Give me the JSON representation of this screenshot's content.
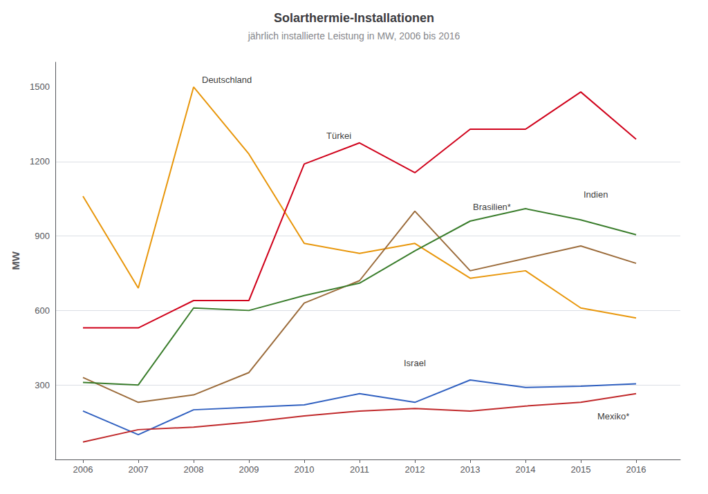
{
  "chart_data": {
    "type": "line",
    "title": "Solarthermie-Installationen",
    "subtitle": "jährlich installierte Leistung in MW, 2006 bis 2016",
    "y_label": "MW",
    "x": [
      2006,
      2007,
      2008,
      2009,
      2010,
      2011,
      2012,
      2013,
      2014,
      2015,
      2016
    ],
    "series": [
      {
        "name": "Deutschland",
        "color": "#E8960A",
        "values": [
          1060,
          690,
          1500,
          1230,
          870,
          830,
          870,
          730,
          760,
          610,
          570
        ]
      },
      {
        "name": "Türkei",
        "color": "#D0021B",
        "values": [
          530,
          530,
          640,
          640,
          1190,
          1275,
          1155,
          1330,
          1330,
          1480,
          1290
        ]
      },
      {
        "name": "Brasilien*",
        "color": "#9B6B3A",
        "values": [
          330,
          230,
          260,
          350,
          630,
          720,
          1000,
          760,
          810,
          860,
          790
        ]
      },
      {
        "name": "Indien",
        "color": "#3A7D2C",
        "values": [
          310,
          300,
          610,
          600,
          660,
          710,
          840,
          960,
          1010,
          965,
          905
        ]
      },
      {
        "name": "Israel",
        "color": "#3060C0",
        "values": [
          195,
          100,
          200,
          210,
          220,
          265,
          230,
          320,
          290,
          295,
          305
        ]
      },
      {
        "name": "Mexiko*",
        "color": "#C0282A",
        "values": [
          70,
          120,
          130,
          150,
          175,
          195,
          205,
          195,
          215,
          230,
          265
        ]
      }
    ],
    "annotations": [
      {
        "text": "Deutschland",
        "x": 2008.15,
        "y": 1510
      },
      {
        "text": "Türkei",
        "x": 2010.4,
        "y": 1285
      },
      {
        "text": "Brasilien*",
        "x": 2013.05,
        "y": 1000
      },
      {
        "text": "Indien",
        "x": 2015.05,
        "y": 1050
      },
      {
        "text": "Israel",
        "x": 2011.8,
        "y": 370
      },
      {
        "text": "Mexiko*",
        "x": 2015.3,
        "y": 155
      }
    ],
    "xlim": [
      2005.5,
      2016.8
    ],
    "xticks": [
      2006,
      2007,
      2008,
      2009,
      2010,
      2011,
      2012,
      2013,
      2014,
      2015,
      2016
    ],
    "ylim": [
      0,
      1600
    ],
    "yticks": [
      {
        "value": 0,
        "label": ""
      },
      300,
      600,
      900,
      1200,
      1500
    ],
    "grid": true
  }
}
